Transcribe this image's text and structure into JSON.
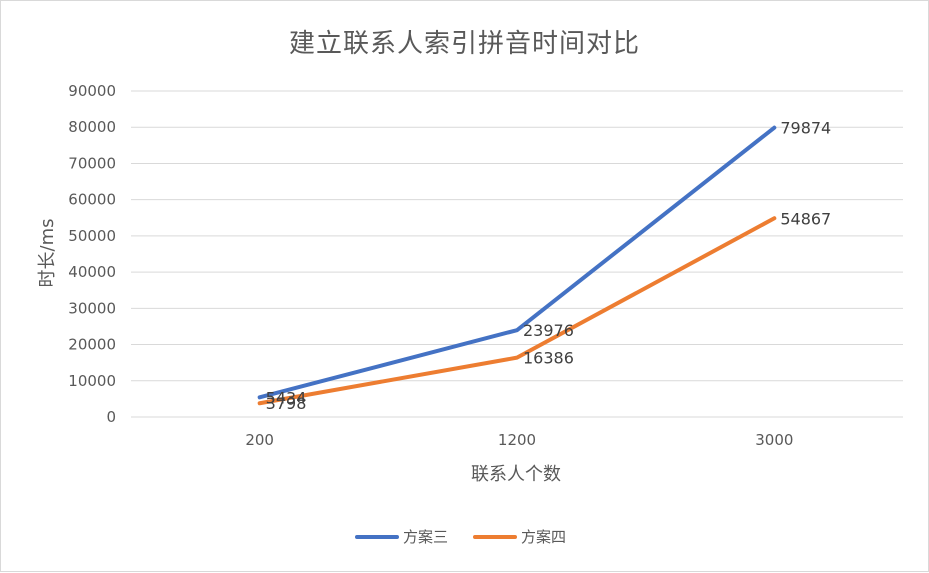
{
  "chart_data": {
    "type": "line",
    "title": "建立联系人索引拼音时间对比",
    "xlabel": "联系人个数",
    "ylabel": "时长/ms",
    "categories": [
      "200",
      "1200",
      "3000"
    ],
    "ylim": [
      0,
      90000
    ],
    "yticks": [
      0,
      10000,
      20000,
      30000,
      40000,
      50000,
      60000,
      70000,
      80000,
      90000
    ],
    "grid": true,
    "legend_position": "bottom",
    "series": [
      {
        "name": "方案三",
        "color": "#4472c4",
        "values": [
          5434,
          23976,
          79874
        ],
        "labels": [
          "5434",
          "23976",
          "79874"
        ]
      },
      {
        "name": "方案四",
        "color": "#ed7d31",
        "values": [
          3798,
          16386,
          54867
        ],
        "labels": [
          "3798",
          "16386",
          "54867"
        ]
      }
    ]
  }
}
